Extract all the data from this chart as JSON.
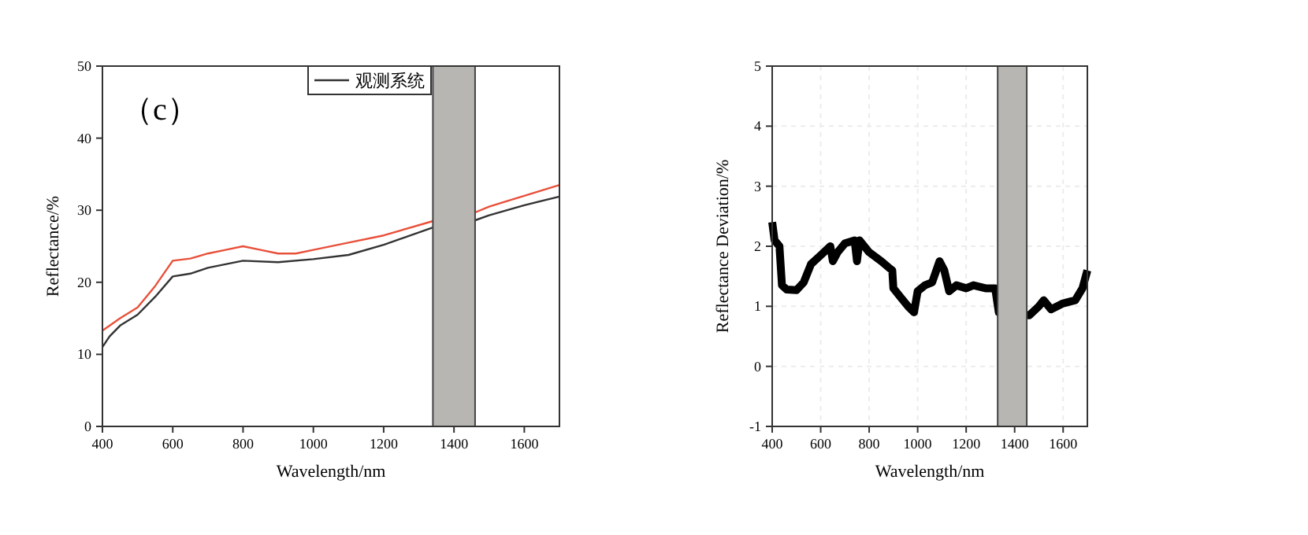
{
  "chart_data": [
    {
      "type": "line",
      "xlabel": "Wavelength/nm",
      "ylabel": "Reflectance/%",
      "xlim": [
        400,
        1700
      ],
      "ylim": [
        0,
        50
      ],
      "xticks": [
        400,
        600,
        800,
        1000,
        1200,
        1400,
        1600
      ],
      "yticks": [
        0,
        10,
        20,
        30,
        40,
        50
      ],
      "legend": "top",
      "annotations": [
        "（c）"
      ],
      "bands": [
        {
          "axis": "x",
          "from": 1340,
          "to": 1460,
          "color": "#b8b6b2"
        }
      ],
      "series": [
        {
          "name": "观测系统",
          "color": "#333333",
          "x": [
            400,
            420,
            450,
            500,
            550,
            600,
            650,
            700,
            800,
            900,
            1000,
            1100,
            1200,
            1340,
            1460,
            1500,
            1600,
            1700
          ],
          "values": [
            11,
            12.5,
            14,
            15.5,
            18,
            20.8,
            21.2,
            22,
            23,
            22.8,
            23.2,
            23.8,
            25.2,
            27.6,
            28.6,
            29.3,
            30.7,
            31.9
          ]
        },
        {
          "color": "#e8503a",
          "x": [
            400,
            450,
            500,
            550,
            600,
            650,
            700,
            750,
            800,
            850,
            900,
            950,
            1000,
            1100,
            1200,
            1340,
            1460,
            1500,
            1600,
            1700
          ],
          "values": [
            13.3,
            15,
            16.5,
            19.5,
            23,
            23.3,
            24,
            24.5,
            25,
            24.5,
            24,
            24,
            24.5,
            25.5,
            26.5,
            28.5,
            29.7,
            30.5,
            32,
            33.5
          ]
        }
      ]
    },
    {
      "type": "line",
      "xlabel": "Wavelength/nm",
      "ylabel": "Reflectance Deviation/%",
      "xlim": [
        400,
        1700
      ],
      "ylim": [
        -1,
        5
      ],
      "xticks": [
        400,
        600,
        800,
        1000,
        1200,
        1400,
        1600
      ],
      "yticks": [
        -1,
        0,
        1,
        2,
        3,
        4,
        5
      ],
      "grid": true,
      "bands": [
        {
          "axis": "x",
          "from": 1330,
          "to": 1450,
          "color": "#b8b6b2"
        }
      ],
      "series": [
        {
          "color": "#000000",
          "x": [
            400,
            410,
            430,
            440,
            460,
            500,
            530,
            560,
            600,
            640,
            650,
            670,
            700,
            740,
            750,
            760,
            800,
            850,
            880,
            895,
            900,
            930,
            960,
            985,
            1000,
            1030,
            1060,
            1090,
            1110,
            1130,
            1160,
            1200,
            1230,
            1280,
            1320,
            1335,
            1460,
            1500,
            1520,
            1550,
            1600,
            1650,
            1680,
            1700
          ],
          "values": [
            2.4,
            2.1,
            2.0,
            1.35,
            1.28,
            1.27,
            1.4,
            1.7,
            1.85,
            2.0,
            1.75,
            1.9,
            2.05,
            2.1,
            1.75,
            2.1,
            1.9,
            1.75,
            1.65,
            1.6,
            1.3,
            1.15,
            1.0,
            0.9,
            1.25,
            1.35,
            1.4,
            1.75,
            1.6,
            1.25,
            1.35,
            1.3,
            1.35,
            1.3,
            1.3,
            0.9,
            0.85,
            1.0,
            1.1,
            0.95,
            1.05,
            1.1,
            1.3,
            1.6
          ]
        }
      ]
    }
  ]
}
